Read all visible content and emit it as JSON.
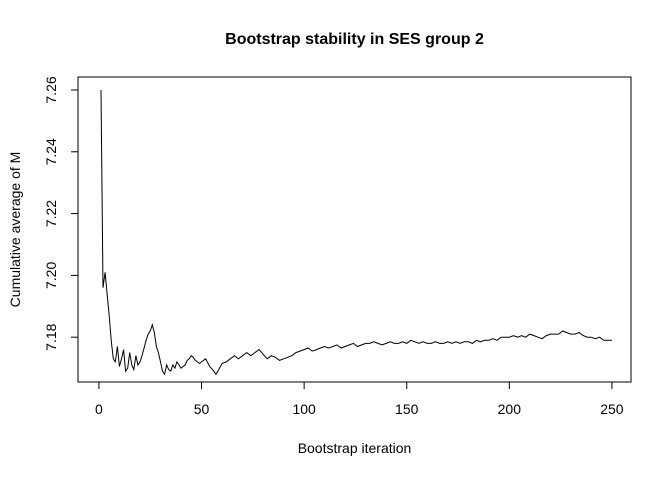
{
  "chart_data": {
    "type": "line",
    "title": "Bootstrap stability in SES group 2",
    "xlabel": "Bootstrap iteration",
    "ylabel": "Cumulative average of M",
    "x_ticks": [
      0,
      50,
      100,
      150,
      200,
      250
    ],
    "x_tick_labels": [
      "0",
      "50",
      "100",
      "150",
      "200",
      "250"
    ],
    "y_ticks": [
      7.18,
      7.2,
      7.22,
      7.24,
      7.26
    ],
    "y_tick_labels": [
      "7.18",
      "7.20",
      "7.22",
      "7.24",
      "7.26"
    ],
    "xlim": [
      -10.2,
      259.3
    ],
    "ylim": [
      7.1655,
      7.2642
    ],
    "grid": false,
    "legend": "none",
    "line_color": "#000000",
    "background_color": "#ffffff",
    "series": [
      {
        "name": "cumulative-average-of-M",
        "points": [
          [
            1,
            7.26
          ],
          [
            2,
            7.196
          ],
          [
            3,
            7.201
          ],
          [
            4,
            7.194
          ],
          [
            5,
            7.187
          ],
          [
            6,
            7.179
          ],
          [
            7,
            7.173
          ],
          [
            8,
            7.172
          ],
          [
            9,
            7.177
          ],
          [
            10,
            7.1705
          ],
          [
            11,
            7.173
          ],
          [
            12,
            7.176
          ],
          [
            13,
            7.169
          ],
          [
            14,
            7.17
          ],
          [
            15,
            7.175
          ],
          [
            16,
            7.171
          ],
          [
            17,
            7.1695
          ],
          [
            18,
            7.174
          ],
          [
            19,
            7.171
          ],
          [
            20,
            7.172
          ],
          [
            21,
            7.174
          ],
          [
            22,
            7.1765
          ],
          [
            23,
            7.179
          ],
          [
            24,
            7.181
          ],
          [
            25,
            7.182
          ],
          [
            26,
            7.184
          ],
          [
            27,
            7.1815
          ],
          [
            28,
            7.177
          ],
          [
            29,
            7.175
          ],
          [
            30,
            7.172
          ],
          [
            31,
            7.169
          ],
          [
            32,
            7.168
          ],
          [
            33,
            7.171
          ],
          [
            34,
            7.1695
          ],
          [
            35,
            7.169
          ],
          [
            36,
            7.171
          ],
          [
            37,
            7.17
          ],
          [
            38,
            7.172
          ],
          [
            39,
            7.171
          ],
          [
            40,
            7.17
          ],
          [
            41,
            7.1705
          ],
          [
            42,
            7.171
          ],
          [
            43,
            7.1725
          ],
          [
            44,
            7.173
          ],
          [
            45,
            7.174
          ],
          [
            46,
            7.1735
          ],
          [
            47,
            7.1725
          ],
          [
            48,
            7.172
          ],
          [
            49,
            7.1715
          ],
          [
            50,
            7.172
          ],
          [
            52,
            7.173
          ],
          [
            54,
            7.1705
          ],
          [
            56,
            7.169
          ],
          [
            57,
            7.168
          ],
          [
            58,
            7.169
          ],
          [
            60,
            7.1715
          ],
          [
            62,
            7.172
          ],
          [
            64,
            7.173
          ],
          [
            66,
            7.174
          ],
          [
            68,
            7.173
          ],
          [
            70,
            7.174
          ],
          [
            72,
            7.175
          ],
          [
            74,
            7.174
          ],
          [
            76,
            7.175
          ],
          [
            78,
            7.176
          ],
          [
            80,
            7.1745
          ],
          [
            82,
            7.173
          ],
          [
            84,
            7.174
          ],
          [
            86,
            7.1735
          ],
          [
            88,
            7.1725
          ],
          [
            90,
            7.173
          ],
          [
            92,
            7.1735
          ],
          [
            94,
            7.174
          ],
          [
            96,
            7.175
          ],
          [
            98,
            7.1755
          ],
          [
            100,
            7.176
          ],
          [
            102,
            7.1765
          ],
          [
            104,
            7.1755
          ],
          [
            106,
            7.176
          ],
          [
            108,
            7.1765
          ],
          [
            110,
            7.177
          ],
          [
            112,
            7.1765
          ],
          [
            114,
            7.177
          ],
          [
            116,
            7.1775
          ],
          [
            118,
            7.1765
          ],
          [
            120,
            7.177
          ],
          [
            122,
            7.1775
          ],
          [
            124,
            7.178
          ],
          [
            126,
            7.177
          ],
          [
            128,
            7.1775
          ],
          [
            130,
            7.178
          ],
          [
            132,
            7.178
          ],
          [
            134,
            7.1785
          ],
          [
            136,
            7.178
          ],
          [
            138,
            7.1775
          ],
          [
            140,
            7.178
          ],
          [
            142,
            7.1785
          ],
          [
            144,
            7.178
          ],
          [
            146,
            7.178
          ],
          [
            148,
            7.1785
          ],
          [
            150,
            7.178
          ],
          [
            152,
            7.179
          ],
          [
            154,
            7.1785
          ],
          [
            156,
            7.178
          ],
          [
            158,
            7.1785
          ],
          [
            160,
            7.178
          ],
          [
            162,
            7.178
          ],
          [
            164,
            7.1785
          ],
          [
            166,
            7.178
          ],
          [
            168,
            7.178
          ],
          [
            170,
            7.1785
          ],
          [
            172,
            7.178
          ],
          [
            174,
            7.1785
          ],
          [
            176,
            7.178
          ],
          [
            178,
            7.1785
          ],
          [
            180,
            7.1785
          ],
          [
            182,
            7.178
          ],
          [
            184,
            7.179
          ],
          [
            186,
            7.1785
          ],
          [
            188,
            7.179
          ],
          [
            190,
            7.179
          ],
          [
            192,
            7.1795
          ],
          [
            194,
            7.179
          ],
          [
            196,
            7.18
          ],
          [
            198,
            7.18
          ],
          [
            200,
            7.18
          ],
          [
            202,
            7.1805
          ],
          [
            204,
            7.18
          ],
          [
            206,
            7.1805
          ],
          [
            208,
            7.18
          ],
          [
            210,
            7.181
          ],
          [
            212,
            7.1805
          ],
          [
            214,
            7.18
          ],
          [
            216,
            7.1795
          ],
          [
            218,
            7.1805
          ],
          [
            220,
            7.181
          ],
          [
            222,
            7.181
          ],
          [
            224,
            7.181
          ],
          [
            226,
            7.182
          ],
          [
            228,
            7.1815
          ],
          [
            230,
            7.181
          ],
          [
            232,
            7.181
          ],
          [
            234,
            7.1815
          ],
          [
            236,
            7.1805
          ],
          [
            238,
            7.18
          ],
          [
            240,
            7.18
          ],
          [
            242,
            7.1795
          ],
          [
            244,
            7.18
          ],
          [
            246,
            7.179
          ],
          [
            248,
            7.179
          ],
          [
            250,
            7.179
          ]
        ]
      }
    ]
  }
}
